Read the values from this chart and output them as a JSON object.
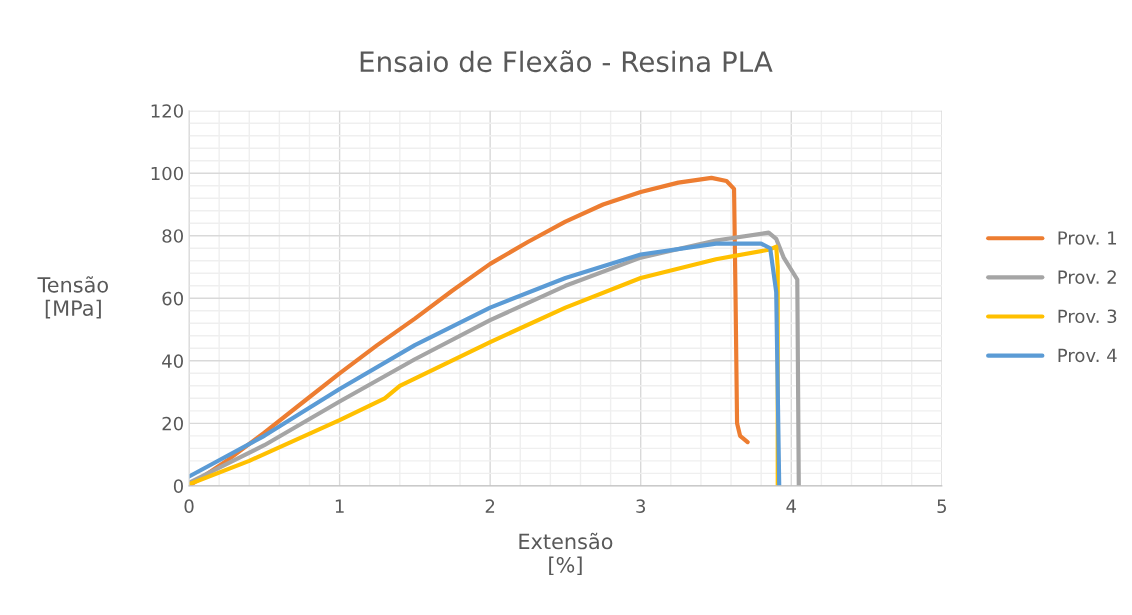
{
  "chart_data": {
    "type": "line",
    "title": "Ensaio de Flexão - Resina PLA",
    "xlabel": "Extensão\n[%]",
    "ylabel": "Tensão\n[MPa]",
    "xlim": [
      0,
      5
    ],
    "xticks": [
      0,
      1,
      2,
      3,
      4,
      5
    ],
    "ylim": [
      0,
      120
    ],
    "yticks": [
      0,
      20,
      40,
      60,
      80,
      100,
      120
    ],
    "grid": true,
    "legend": "right",
    "marker": "none",
    "line_style": "solid",
    "series": [
      {
        "name": "Prov. 1",
        "color": "#ed7d31",
        "x": [
          0,
          0.25,
          0.5,
          0.75,
          1,
          1.25,
          1.5,
          1.75,
          2,
          2.25,
          2.5,
          2.75,
          3,
          3.25,
          3.47,
          3.57,
          3.62,
          3.63,
          3.64,
          3.66,
          3.71
        ],
        "values": [
          0,
          8,
          17,
          26.5,
          36,
          45,
          53.5,
          62.5,
          71,
          78,
          84.5,
          90,
          94,
          97,
          98.5,
          97.5,
          95,
          60,
          20,
          16,
          14
        ]
      },
      {
        "name": "Prov. 2",
        "color": "#a5a5a5",
        "x": [
          0,
          0.5,
          1,
          1.5,
          2,
          2.5,
          3,
          3.5,
          3.85,
          3.9,
          3.95,
          4.04,
          4.05
        ],
        "values": [
          1,
          13,
          27,
          40.5,
          53,
          64,
          73,
          78.5,
          81,
          79,
          73,
          66,
          0
        ]
      },
      {
        "name": "Prov. 3",
        "color": "#ffc000",
        "x": [
          0,
          0.4,
          1,
          1.3,
          1.4,
          2,
          2.5,
          3,
          3.5,
          3.85,
          3.9,
          3.91,
          3.91
        ],
        "values": [
          0.5,
          8,
          21,
          28,
          32,
          46,
          57,
          66.5,
          72.5,
          75.5,
          76.5,
          70,
          0
        ]
      },
      {
        "name": "Prov. 4",
        "color": "#5b9bd5",
        "x": [
          0,
          0.5,
          1,
          1.5,
          2,
          2.5,
          3,
          3.5,
          3.8,
          3.86,
          3.9,
          3.92
        ],
        "values": [
          3,
          16,
          31,
          45,
          57,
          66.5,
          74,
          77.5,
          77.5,
          76,
          62,
          0
        ]
      }
    ]
  }
}
